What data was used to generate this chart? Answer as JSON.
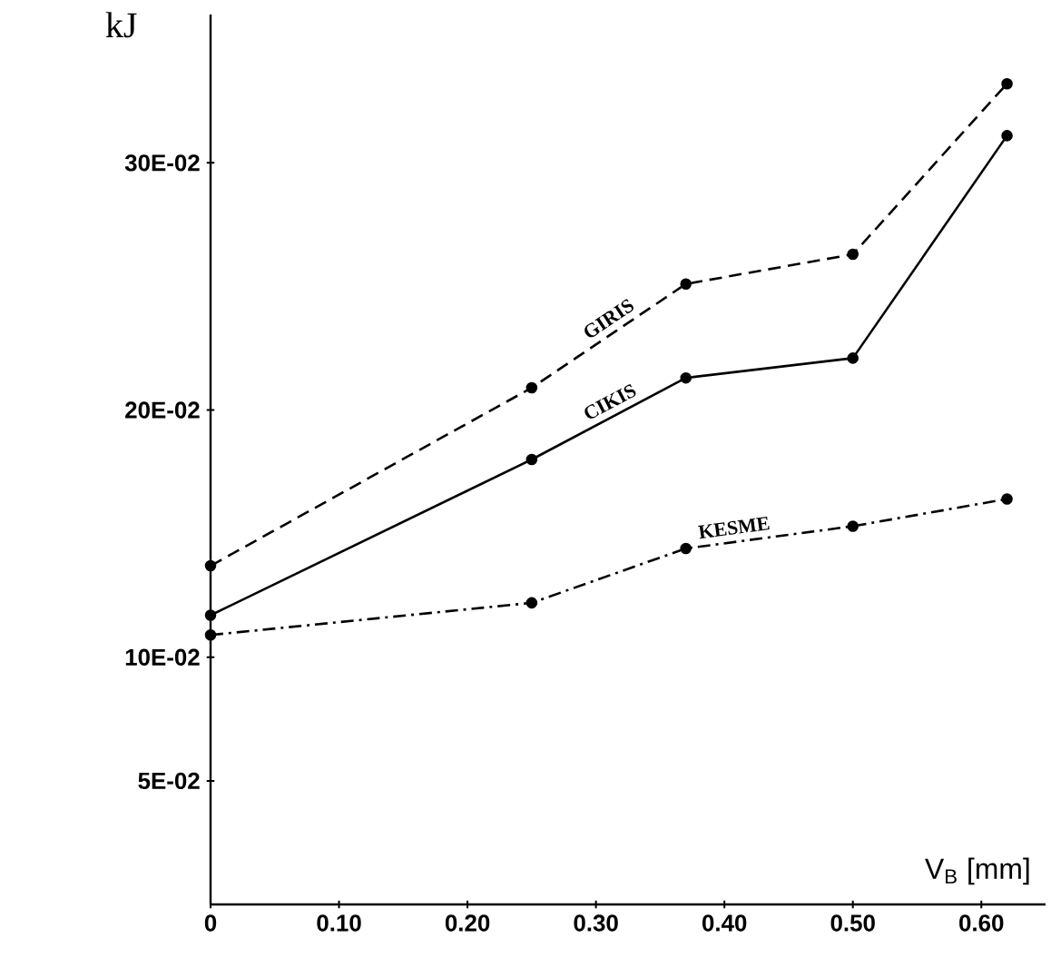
{
  "chart_data": {
    "type": "line",
    "xlabel": "V$_{B}$ [mm]",
    "ylabel": "kJ",
    "x": [
      0,
      0.25,
      0.37,
      0.5,
      0.62
    ],
    "series": [
      {
        "name": "GIRIS",
        "color": "#000000",
        "line_style": "dashed",
        "values": [
          0.137,
          0.209,
          0.251,
          0.263,
          0.332
        ]
      },
      {
        "name": "CIKIS",
        "color": "#000000",
        "line_style": "solid",
        "values": [
          0.117,
          0.18,
          0.213,
          0.221,
          0.311
        ]
      },
      {
        "name": "KESME",
        "color": "#000000",
        "line_style": "dashdot",
        "values": [
          0.109,
          0.122,
          0.144,
          0.153,
          0.164
        ]
      }
    ],
    "xlim": [
      0,
      0.65
    ],
    "ylim": [
      0,
      0.36
    ],
    "xticks": [
      0,
      {
        "value": 0.1,
        "label": "0.10"
      },
      {
        "value": 0.2,
        "label": "0.20"
      },
      {
        "value": 0.3,
        "label": "0.30"
      },
      {
        "value": 0.4,
        "label": "0.40"
      },
      {
        "value": 0.5,
        "label": "0.50"
      },
      {
        "value": 0.6,
        "label": "0.60"
      }
    ],
    "yticks": [
      {
        "value": 0.05,
        "label": "5E-02"
      },
      {
        "value": 0.1,
        "label": "10E-02"
      },
      {
        "value": 0.2,
        "label": "20E-02"
      },
      {
        "value": 0.3,
        "label": "30E-02"
      }
    ],
    "marker": "circle",
    "grid": false,
    "legend": false
  }
}
